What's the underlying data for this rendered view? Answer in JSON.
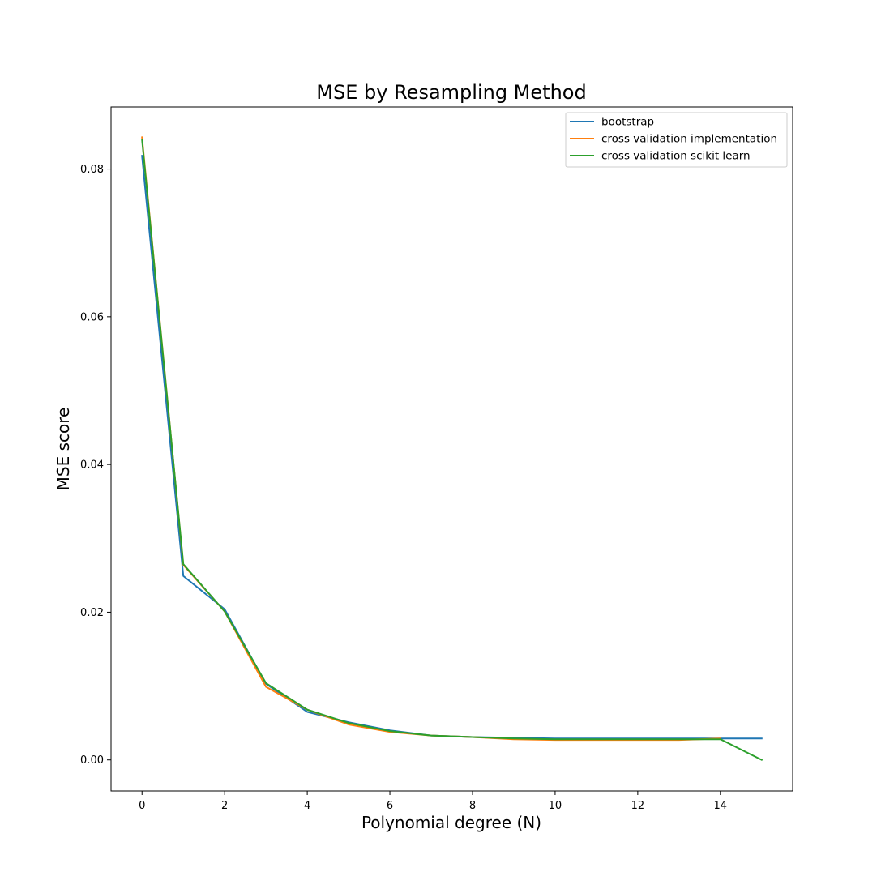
{
  "chart_data": {
    "type": "line",
    "title": "MSE by Resampling Method",
    "xlabel": "Polynomial degree (N)",
    "ylabel": "MSE score",
    "xlim": [
      -0.75,
      15.75
    ],
    "ylim": [
      -0.0042,
      0.0884
    ],
    "xticks": [
      0,
      2,
      4,
      6,
      8,
      10,
      12,
      14
    ],
    "yticks": [
      0.0,
      0.02,
      0.04,
      0.06,
      0.08
    ],
    "xtick_labels": [
      "0",
      "2",
      "4",
      "6",
      "8",
      "10",
      "12",
      "14"
    ],
    "ytick_labels": [
      "0.00",
      "0.02",
      "0.04",
      "0.06",
      "0.08"
    ],
    "grid": false,
    "legend_position": "top-right",
    "series": [
      {
        "name": "bootstrap",
        "color": "#1f77b4",
        "x": [
          0,
          1,
          2,
          3,
          4,
          5,
          6,
          7,
          8,
          9,
          10,
          11,
          12,
          13,
          14,
          15
        ],
        "values": [
          0.0818,
          0.0249,
          0.0204,
          0.0103,
          0.0065,
          0.0051,
          0.004,
          0.0033,
          0.0031,
          0.003,
          0.0029,
          0.0029,
          0.0029,
          0.0029,
          0.0029,
          0.0029
        ]
      },
      {
        "name": "cross validation implementation",
        "color": "#ff7f0e",
        "x": [
          0,
          1,
          2,
          3,
          4,
          5,
          6,
          7,
          8,
          9,
          10,
          11,
          12,
          13,
          14
        ],
        "values": [
          0.0843,
          0.0264,
          0.0201,
          0.0099,
          0.0068,
          0.0048,
          0.0038,
          0.0033,
          0.0031,
          0.0028,
          0.0027,
          0.0027,
          0.0027,
          0.0027,
          0.0029
        ]
      },
      {
        "name": "cross validation scikit learn",
        "color": "#2ca02c",
        "x": [
          0,
          1,
          2,
          3,
          4,
          5,
          6,
          7,
          8,
          9,
          10,
          11,
          12,
          13,
          14,
          15
        ],
        "values": [
          0.084,
          0.0265,
          0.0201,
          0.0104,
          0.0068,
          0.005,
          0.0039,
          0.0033,
          0.0031,
          0.0029,
          0.0028,
          0.0028,
          0.0028,
          0.0028,
          0.0028,
          0.0
        ]
      }
    ]
  }
}
